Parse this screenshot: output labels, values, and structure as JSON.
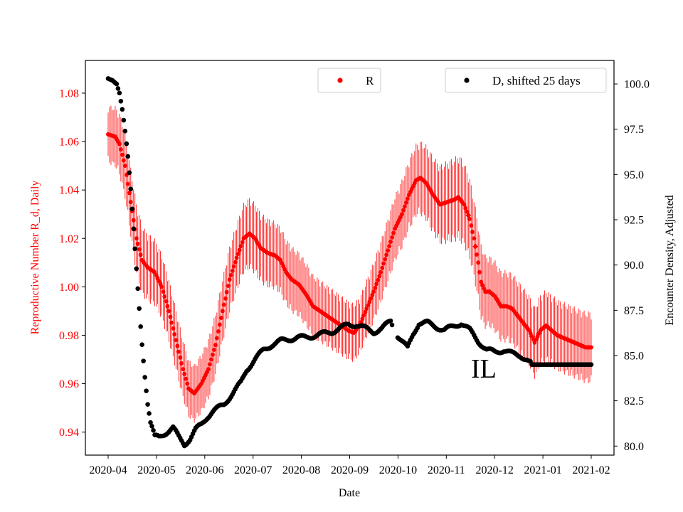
{
  "chart_data": {
    "type": "scatter",
    "xlabel": "Date",
    "ylabel_left": "Reproductive Number R_d, Daily",
    "ylabel_right": "Encounter Density, Adjusted",
    "annotation": "IL",
    "x_ticks": [
      "2020-04",
      "2020-05",
      "2020-06",
      "2020-07",
      "2020-08",
      "2020-09",
      "2020-10",
      "2020-11",
      "2020-12",
      "2021-01",
      "2021-02"
    ],
    "ylim_left": [
      0.9305,
      1.0935
    ],
    "ylim_right": [
      79.5,
      101.3
    ],
    "y_ticks_left": [
      "0.94",
      "0.96",
      "0.98",
      "1.00",
      "1.02",
      "1.04",
      "1.06",
      "1.08"
    ],
    "y_ticks_right": [
      "80.0",
      "82.5",
      "85.0",
      "87.5",
      "90.0",
      "92.5",
      "95.0",
      "97.5",
      "100.0"
    ],
    "legend": [
      {
        "label": "R",
        "color": "#ff0000",
        "position": "top-center"
      },
      {
        "label": "D, shifted 25 days",
        "color": "#000000",
        "position": "top-right"
      }
    ],
    "colors": {
      "R": "#ff0000",
      "D": "#000000",
      "left_axis_text": "#ff0000"
    },
    "series_R_knots": [
      [
        0,
        1.063
      ],
      [
        5,
        1.062
      ],
      [
        8,
        1.059
      ],
      [
        12,
        1.05
      ],
      [
        16,
        1.035
      ],
      [
        20,
        1.02
      ],
      [
        24,
        1.011
      ],
      [
        28,
        1.008
      ],
      [
        33,
        1.006
      ],
      [
        38,
        1.0
      ],
      [
        43,
        0.99
      ],
      [
        48,
        0.978
      ],
      [
        53,
        0.966
      ],
      [
        57,
        0.958
      ],
      [
        61,
        0.956
      ],
      [
        66,
        0.96
      ],
      [
        71,
        0.966
      ],
      [
        76,
        0.976
      ],
      [
        81,
        0.99
      ],
      [
        86,
        1.003
      ],
      [
        91,
        1.012
      ],
      [
        96,
        1.02
      ],
      [
        100,
        1.022
      ],
      [
        104,
        1.02
      ],
      [
        108,
        1.016
      ],
      [
        113,
        1.014
      ],
      [
        118,
        1.013
      ],
      [
        122,
        1.011
      ],
      [
        126,
        1.006
      ],
      [
        130,
        1.003
      ],
      [
        135,
        1.001
      ],
      [
        140,
        0.997
      ],
      [
        145,
        0.992
      ],
      [
        150,
        0.99
      ],
      [
        155,
        0.988
      ],
      [
        160,
        0.986
      ],
      [
        165,
        0.984
      ],
      [
        170,
        0.982
      ],
      [
        174,
        0.981
      ],
      [
        178,
        0.984
      ],
      [
        183,
        0.991
      ],
      [
        188,
        0.998
      ],
      [
        193,
        1.006
      ],
      [
        198,
        1.015
      ],
      [
        203,
        1.024
      ],
      [
        208,
        1.03
      ],
      [
        213,
        1.038
      ],
      [
        218,
        1.044
      ],
      [
        221,
        1.045
      ],
      [
        225,
        1.043
      ],
      [
        230,
        1.038
      ],
      [
        235,
        1.034
      ],
      [
        240,
        1.035
      ],
      [
        245,
        1.036
      ],
      [
        248,
        1.037
      ],
      [
        252,
        1.034
      ],
      [
        256,
        1.028
      ],
      [
        259,
        1.02
      ],
      [
        262,
        1.01
      ],
      [
        264,
        1.002
      ],
      [
        267,
        0.998
      ],
      [
        270,
        0.998
      ],
      [
        274,
        0.996
      ],
      [
        278,
        0.992
      ],
      [
        282,
        0.992
      ],
      [
        286,
        0.991
      ],
      [
        290,
        0.988
      ],
      [
        294,
        0.985
      ],
      [
        298,
        0.982
      ],
      [
        302,
        0.977
      ],
      [
        306,
        0.982
      ],
      [
        310,
        0.984
      ],
      [
        314,
        0.982
      ],
      [
        318,
        0.98
      ],
      [
        322,
        0.979
      ],
      [
        326,
        0.978
      ],
      [
        330,
        0.977
      ],
      [
        334,
        0.976
      ],
      [
        338,
        0.975
      ],
      [
        342,
        0.975
      ]
    ],
    "series_R_error_half_width": [
      [
        0,
        0.012
      ],
      [
        20,
        0.015
      ],
      [
        60,
        0.012
      ],
      [
        100,
        0.015
      ],
      [
        180,
        0.012
      ],
      [
        250,
        0.018
      ],
      [
        270,
        0.015
      ],
      [
        342,
        0.015
      ]
    ],
    "series_D_knots": [
      [
        0,
        100.3
      ],
      [
        3,
        100.2
      ],
      [
        6,
        100.0
      ],
      [
        8,
        99.5
      ],
      [
        10,
        98.6
      ],
      [
        12,
        97.4
      ],
      [
        14,
        96.0
      ],
      [
        16,
        94.2
      ],
      [
        18,
        92.0
      ],
      [
        20,
        89.8
      ],
      [
        22,
        87.6
      ],
      [
        24,
        85.6
      ],
      [
        26,
        83.8
      ],
      [
        28,
        82.3
      ],
      [
        30,
        81.3
      ],
      [
        33,
        80.5
      ],
      [
        36,
        80.5
      ],
      [
        42,
        80.8
      ],
      [
        46,
        81.0
      ],
      [
        50,
        80.5
      ],
      [
        54,
        80.1
      ],
      [
        58,
        80.4
      ],
      [
        62,
        80.9
      ],
      [
        66,
        81.2
      ],
      [
        70,
        81.6
      ],
      [
        74,
        81.9
      ],
      [
        78,
        82.1
      ],
      [
        82,
        82.3
      ],
      [
        86,
        82.7
      ],
      [
        90,
        83.1
      ],
      [
        94,
        83.5
      ],
      [
        98,
        84.2
      ],
      [
        104,
        84.8
      ],
      [
        110,
        85.3
      ],
      [
        116,
        85.6
      ],
      [
        122,
        85.8
      ],
      [
        128,
        85.9
      ],
      [
        134,
        86.0
      ],
      [
        140,
        86.0
      ],
      [
        146,
        86.1
      ],
      [
        152,
        86.2
      ],
      [
        158,
        86.3
      ],
      [
        164,
        86.5
      ],
      [
        170,
        86.7
      ],
      [
        176,
        86.7
      ],
      [
        182,
        86.5
      ],
      [
        188,
        86.3
      ],
      [
        194,
        86.5
      ],
      [
        200,
        86.9
      ],
      [
        204,
        86.2
      ],
      [
        208,
        85.8
      ],
      [
        212,
        85.4
      ],
      [
        216,
        86.2
      ],
      [
        220,
        86.8
      ],
      [
        226,
        86.8
      ],
      [
        232,
        86.6
      ],
      [
        238,
        86.4
      ],
      [
        244,
        86.6
      ],
      [
        250,
        86.8
      ],
      [
        256,
        86.4
      ],
      [
        262,
        85.8
      ],
      [
        268,
        85.3
      ],
      [
        274,
        85.2
      ],
      [
        280,
        85.3
      ],
      [
        286,
        85.1
      ],
      [
        292,
        85.0
      ],
      [
        296,
        84.8
      ],
      [
        300,
        84.5
      ],
      [
        304,
        84.5
      ],
      [
        342,
        84.5
      ]
    ],
    "series_D_gap": [
      201,
      205
    ]
  }
}
